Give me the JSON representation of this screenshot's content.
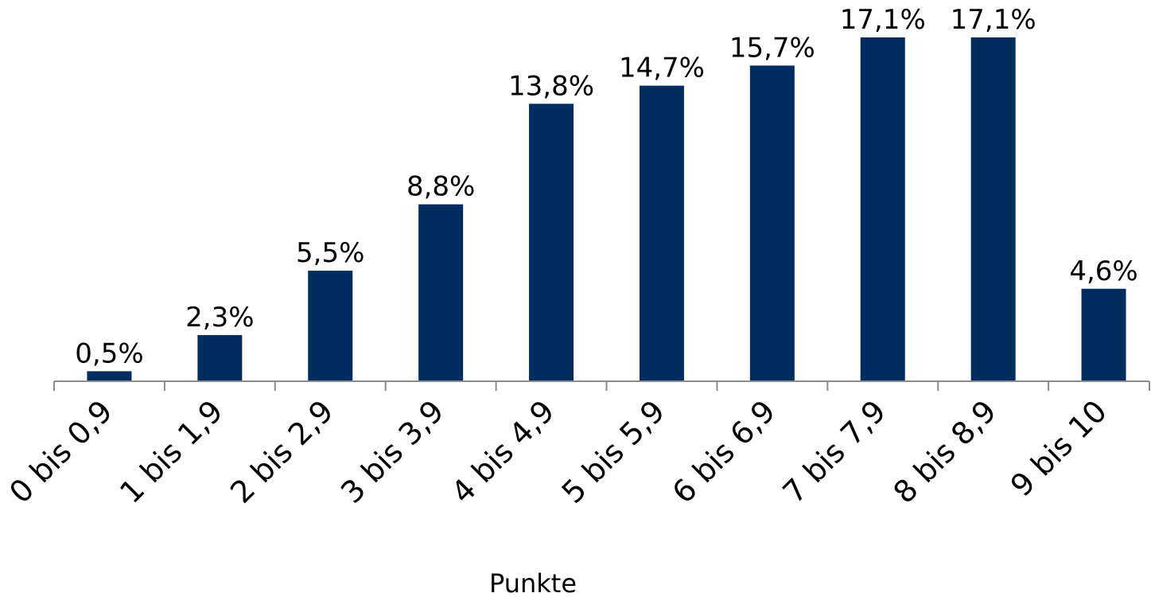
{
  "chart_data": {
    "type": "bar",
    "categories": [
      "0 bis 0,9",
      "1 bis 1,9",
      "2 bis 2,9",
      "3 bis 3,9",
      "4 bis 4,9",
      "5 bis 5,9",
      "6 bis 6,9",
      "7 bis 7,9",
      "8 bis 8,9",
      "9 bis 10"
    ],
    "values": [
      0.5,
      2.3,
      5.5,
      8.8,
      13.8,
      14.7,
      15.7,
      17.1,
      17.1,
      4.6
    ],
    "value_labels": [
      "0,5%",
      "2,3%",
      "5,5%",
      "8,8%",
      "13,8%",
      "14,7%",
      "15,7%",
      "17,1%",
      "17,1%",
      "4,6%"
    ],
    "xlabel": "Punkte",
    "ylim": [
      0,
      17.1
    ],
    "grid": false,
    "legend": "none",
    "bar_color": "#002d5f",
    "axis_color": "#8c8c8c"
  }
}
